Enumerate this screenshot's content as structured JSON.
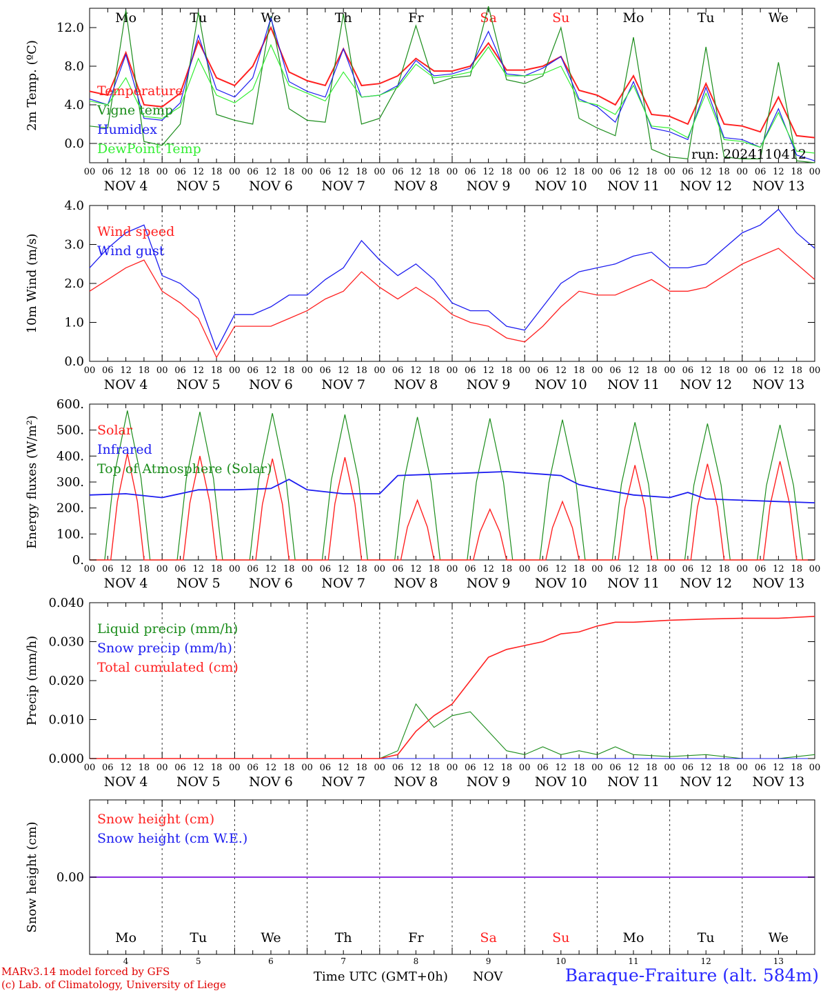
{
  "days": [
    "Mo",
    "Tu",
    "We",
    "Th",
    "Fr",
    "Sa",
    "Su",
    "Mo",
    "Tu",
    "We"
  ],
  "weekend": [
    false,
    false,
    false,
    false,
    false,
    true,
    true,
    false,
    false,
    false
  ],
  "dates": [
    "NOV  4",
    "NOV  5",
    "NOV  6",
    "NOV  7",
    "NOV  8",
    "NOV  9",
    "NOV 10",
    "NOV 11",
    "NOV 12",
    "NOV 13"
  ],
  "day_numbers": [
    "4",
    "5",
    "6",
    "7",
    "8",
    "9",
    "10",
    "11",
    "12",
    "13"
  ],
  "hour_ticks": [
    "00",
    "06",
    "12",
    "18"
  ],
  "colors": {
    "red": "#ff2020",
    "green": "#1a8c1a",
    "blue": "#1c1cf0",
    "lightgreen": "#33ee33",
    "purple": "#8a2be2"
  },
  "chart_data": [
    {
      "type": "line",
      "ylabel": "2m Temp. (ºC)",
      "ylim": [
        -2,
        14
      ],
      "yticks": [
        "12.0",
        "8.0",
        "4.0",
        "0.0"
      ],
      "run_label": "run: 2024110412",
      "x_hours": [
        0,
        6,
        12,
        18,
        24,
        30,
        36,
        42,
        48,
        54,
        60,
        66,
        72,
        78,
        84,
        90,
        96,
        102,
        108,
        114,
        120,
        126,
        132,
        138,
        144,
        150,
        156,
        162,
        168,
        174,
        180,
        186,
        192,
        198,
        204,
        210,
        216,
        222,
        228,
        234,
        240
      ],
      "series": [
        {
          "name": "Temperature",
          "color": "red",
          "values": [
            5.4,
            5.0,
            9.4,
            4.0,
            3.8,
            5.2,
            10.6,
            6.8,
            6.0,
            8.0,
            12.0,
            7.4,
            6.5,
            6.0,
            9.8,
            6.0,
            6.2,
            7.0,
            8.8,
            7.5,
            7.5,
            8.0,
            10.4,
            7.6,
            7.6,
            8.0,
            9.0,
            5.5,
            5.0,
            4.0,
            7.0,
            3.0,
            2.8,
            2.0,
            6.2,
            2.0,
            1.8,
            1.2,
            4.8,
            0.8,
            0.6
          ]
        },
        {
          "name": "Vigne temp",
          "color": "green",
          "values": [
            1.8,
            1.6,
            13.8,
            0.2,
            -0.2,
            2.0,
            13.6,
            3.0,
            2.4,
            2.0,
            13.2,
            3.6,
            2.4,
            2.2,
            13.4,
            2.0,
            2.6,
            6.0,
            12.2,
            6.2,
            6.8,
            7.0,
            14.2,
            6.6,
            6.2,
            7.0,
            12.0,
            2.6,
            1.6,
            0.8,
            11.0,
            -0.6,
            -1.4,
            -1.6,
            10.0,
            -1.4,
            -1.6,
            -1.6,
            8.4,
            -1.8,
            -2.0
          ]
        },
        {
          "name": "Humidex",
          "color": "blue",
          "values": [
            4.6,
            4.0,
            9.2,
            2.6,
            2.4,
            4.2,
            11.2,
            5.6,
            4.8,
            6.8,
            13.0,
            6.4,
            5.4,
            4.8,
            9.8,
            4.8,
            5.0,
            6.0,
            8.6,
            7.0,
            7.2,
            7.8,
            11.6,
            7.2,
            7.0,
            7.8,
            9.0,
            4.6,
            3.8,
            2.2,
            6.4,
            1.6,
            1.2,
            0.4,
            5.8,
            0.6,
            0.4,
            -0.4,
            3.6,
            -1.2,
            -1.8
          ]
        },
        {
          "name": "DewPoint Temp",
          "color": "lightgreen",
          "values": [
            4.4,
            4.0,
            6.8,
            2.8,
            2.6,
            3.8,
            8.8,
            5.0,
            4.2,
            5.6,
            10.2,
            6.0,
            5.2,
            4.4,
            7.4,
            4.8,
            5.0,
            5.8,
            8.2,
            6.8,
            7.0,
            7.4,
            10.0,
            7.0,
            7.0,
            7.2,
            8.0,
            4.4,
            4.0,
            3.0,
            6.0,
            1.8,
            1.6,
            0.6,
            5.2,
            0.4,
            0.2,
            -0.4,
            3.2,
            -0.8,
            -1.0
          ]
        }
      ]
    },
    {
      "type": "line",
      "ylabel": "10m Wind (m/s)",
      "ylim": [
        0,
        4
      ],
      "yticks": [
        "4.0",
        "3.0",
        "2.0",
        "1.0",
        "0.0"
      ],
      "x_hours": [
        0,
        6,
        12,
        18,
        24,
        30,
        36,
        42,
        48,
        54,
        60,
        66,
        72,
        78,
        84,
        90,
        96,
        102,
        108,
        114,
        120,
        126,
        132,
        138,
        144,
        150,
        156,
        162,
        168,
        174,
        180,
        186,
        192,
        198,
        204,
        210,
        216,
        222,
        228,
        234,
        240
      ],
      "series": [
        {
          "name": "Wind speed",
          "color": "red",
          "values": [
            1.8,
            2.1,
            2.4,
            2.6,
            1.8,
            1.5,
            1.1,
            0.1,
            0.9,
            0.9,
            0.9,
            1.1,
            1.3,
            1.6,
            1.8,
            2.3,
            1.9,
            1.6,
            1.9,
            1.6,
            1.2,
            1.0,
            0.9,
            0.6,
            0.5,
            0.9,
            1.4,
            1.8,
            1.7,
            1.7,
            1.9,
            2.1,
            1.8,
            1.8,
            1.9,
            2.2,
            2.5,
            2.7,
            2.9,
            2.5,
            2.1
          ]
        },
        {
          "name": "Wind gust",
          "color": "blue",
          "values": [
            2.4,
            2.9,
            3.3,
            3.5,
            2.2,
            2.0,
            1.6,
            0.3,
            1.2,
            1.2,
            1.4,
            1.7,
            1.7,
            2.1,
            2.4,
            3.1,
            2.6,
            2.2,
            2.5,
            2.1,
            1.5,
            1.3,
            1.3,
            0.9,
            0.8,
            1.4,
            2.0,
            2.3,
            2.4,
            2.5,
            2.7,
            2.8,
            2.4,
            2.4,
            2.5,
            2.9,
            3.3,
            3.5,
            3.9,
            3.3,
            2.9
          ]
        }
      ]
    },
    {
      "type": "line",
      "ylabel": "Energy fluxes (W/m²)",
      "ylim": [
        0,
        600
      ],
      "yticks": [
        "600.",
        "500.",
        "400.",
        "300.",
        "200.",
        "100.",
        "0."
      ],
      "solar_peaks": [
        410,
        400,
        390,
        395,
        230,
        195,
        225,
        365,
        370,
        380
      ],
      "toa_peaks": [
        575,
        570,
        565,
        560,
        550,
        545,
        540,
        530,
        525,
        520
      ],
      "infrared_hours": [
        0,
        12,
        24,
        36,
        48,
        60,
        66,
        72,
        84,
        96,
        102,
        114,
        126,
        138,
        150,
        156,
        162,
        168,
        180,
        192,
        198,
        204,
        216,
        228,
        240
      ],
      "infrared_values": [
        250,
        255,
        240,
        270,
        270,
        275,
        310,
        270,
        255,
        255,
        325,
        330,
        335,
        340,
        330,
        325,
        290,
        275,
        250,
        240,
        260,
        235,
        230,
        225,
        220
      ],
      "series": [
        {
          "name": "Solar",
          "color": "red"
        },
        {
          "name": "Infrared",
          "color": "blue"
        },
        {
          "name": "Top of Atmosphere (Solar)",
          "color": "green"
        }
      ]
    },
    {
      "type": "line",
      "ylabel": "Precip (mm/h)",
      "ylim": [
        0,
        0.04
      ],
      "yticks": [
        "0.040",
        "0.030",
        "0.020",
        "0.010",
        "0.000"
      ],
      "x_hours": [
        0,
        96,
        102,
        108,
        114,
        120,
        126,
        132,
        138,
        144,
        150,
        156,
        162,
        168,
        174,
        180,
        192,
        204,
        216,
        228,
        240
      ],
      "series": [
        {
          "name": "Liquid precip (mm/h)",
          "color": "green",
          "values": [
            0,
            0,
            0.002,
            0.014,
            0.008,
            0.011,
            0.012,
            0.007,
            0.002,
            0.001,
            0.003,
            0.001,
            0.002,
            0.001,
            0.003,
            0.001,
            0.0005,
            0.001,
            0,
            0,
            0.001
          ]
        },
        {
          "name": "Snow precip (mm/h)",
          "color": "blue",
          "values": [
            0,
            0,
            0,
            0,
            0,
            0,
            0,
            0,
            0,
            0,
            0,
            0,
            0,
            0,
            0,
            0,
            0,
            0,
            0,
            0,
            0
          ]
        },
        {
          "name": "Total cumulated (cm)",
          "color": "red",
          "values": [
            0,
            0,
            0.001,
            0.007,
            0.011,
            0.014,
            0.02,
            0.026,
            0.028,
            0.029,
            0.03,
            0.032,
            0.0325,
            0.034,
            0.035,
            0.035,
            0.0355,
            0.0358,
            0.036,
            0.036,
            0.0365
          ]
        }
      ]
    },
    {
      "type": "line",
      "ylabel": "Snow height (cm)",
      "ylim": [
        -1,
        1
      ],
      "yticks": [
        "0.00"
      ],
      "series": [
        {
          "name": "Snow height (cm)",
          "color": "red",
          "values": [
            0,
            0
          ]
        },
        {
          "name": "Snow height (cm W.E.)",
          "color": "blue",
          "values": [
            0,
            0
          ]
        }
      ]
    }
  ],
  "footer": {
    "model_line": "MARv3.14 model forced by GFS",
    "lab_line": "(c) Lab. of Climatology, University of Liege",
    "time_label": "Time UTC (GMT+0h)",
    "month": "NOV",
    "station": "Baraque-Fraiture (alt. 584m)"
  }
}
